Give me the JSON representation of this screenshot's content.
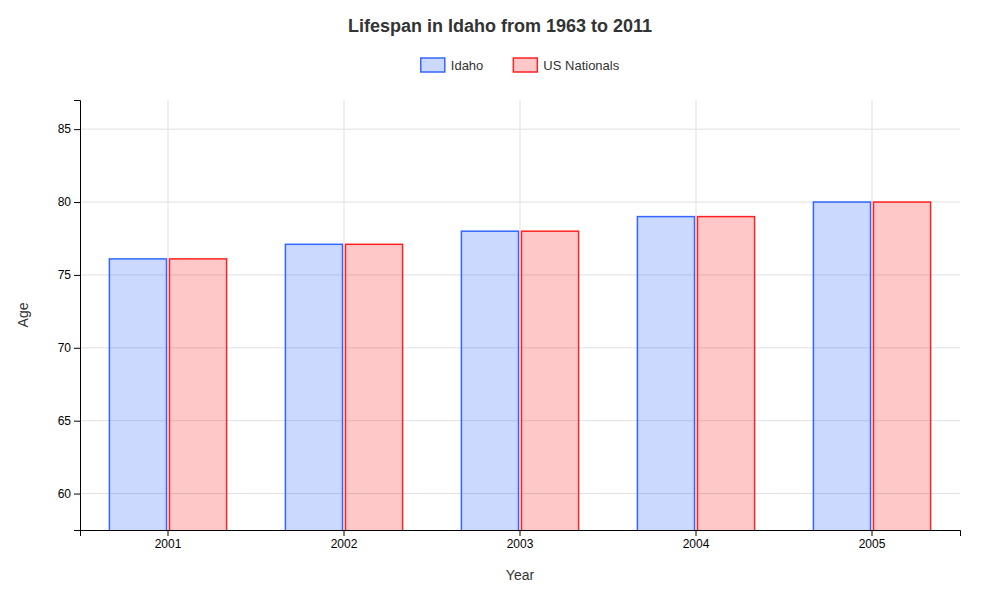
{
  "chart_data": {
    "type": "bar",
    "title": "Lifespan in Idaho from 1963 to 2011",
    "xlabel": "Year",
    "ylabel": "Age",
    "categories": [
      "2001",
      "2002",
      "2003",
      "2004",
      "2005"
    ],
    "series": [
      {
        "name": "Idaho",
        "color": "#3366ff",
        "values": [
          76.1,
          77.1,
          78.0,
          79.0,
          80.0
        ]
      },
      {
        "name": "US Nationals",
        "color": "#ff2222",
        "values": [
          76.1,
          77.1,
          78.0,
          79.0,
          80.0
        ]
      }
    ],
    "ylim": [
      57.5,
      87
    ],
    "yticks": [
      60,
      65,
      70,
      75,
      80,
      85
    ],
    "grid": true,
    "legend": "top"
  }
}
